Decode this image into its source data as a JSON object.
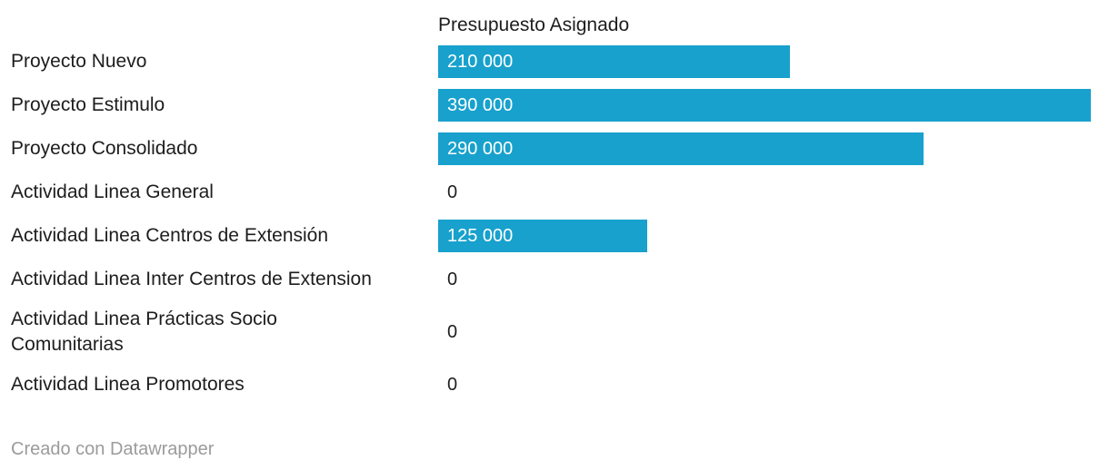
{
  "chart_data": {
    "type": "bar",
    "orientation": "horizontal",
    "column_header": "Presupuesto Asignado",
    "categories": [
      "Proyecto Nuevo",
      "Proyecto Estimulo",
      "Proyecto Consolidado",
      "Actividad Linea General",
      "Actividad Linea Centros de Extensión",
      "Actividad Linea Inter Centros de Extension",
      "Actividad Linea Prácticas Socio\nComunitarias",
      "Actividad Linea Promotores"
    ],
    "values": [
      210000,
      390000,
      290000,
      0,
      125000,
      0,
      0,
      0
    ],
    "value_labels": [
      "210 000",
      "390 000",
      "290 000",
      "0",
      "125 000",
      "0",
      "0",
      "0"
    ],
    "xlim": [
      0,
      390000
    ],
    "grid": false,
    "legend": "none",
    "bar_color": "#18a1cd"
  },
  "colors": {
    "bar": "#18a1cd",
    "label": "#1d1d1d",
    "value_on_bar": "#ffffff",
    "footer": "#9b9b9b",
    "background": "#ffffff"
  },
  "footer": {
    "attribution": "Creado con Datawrapper"
  }
}
